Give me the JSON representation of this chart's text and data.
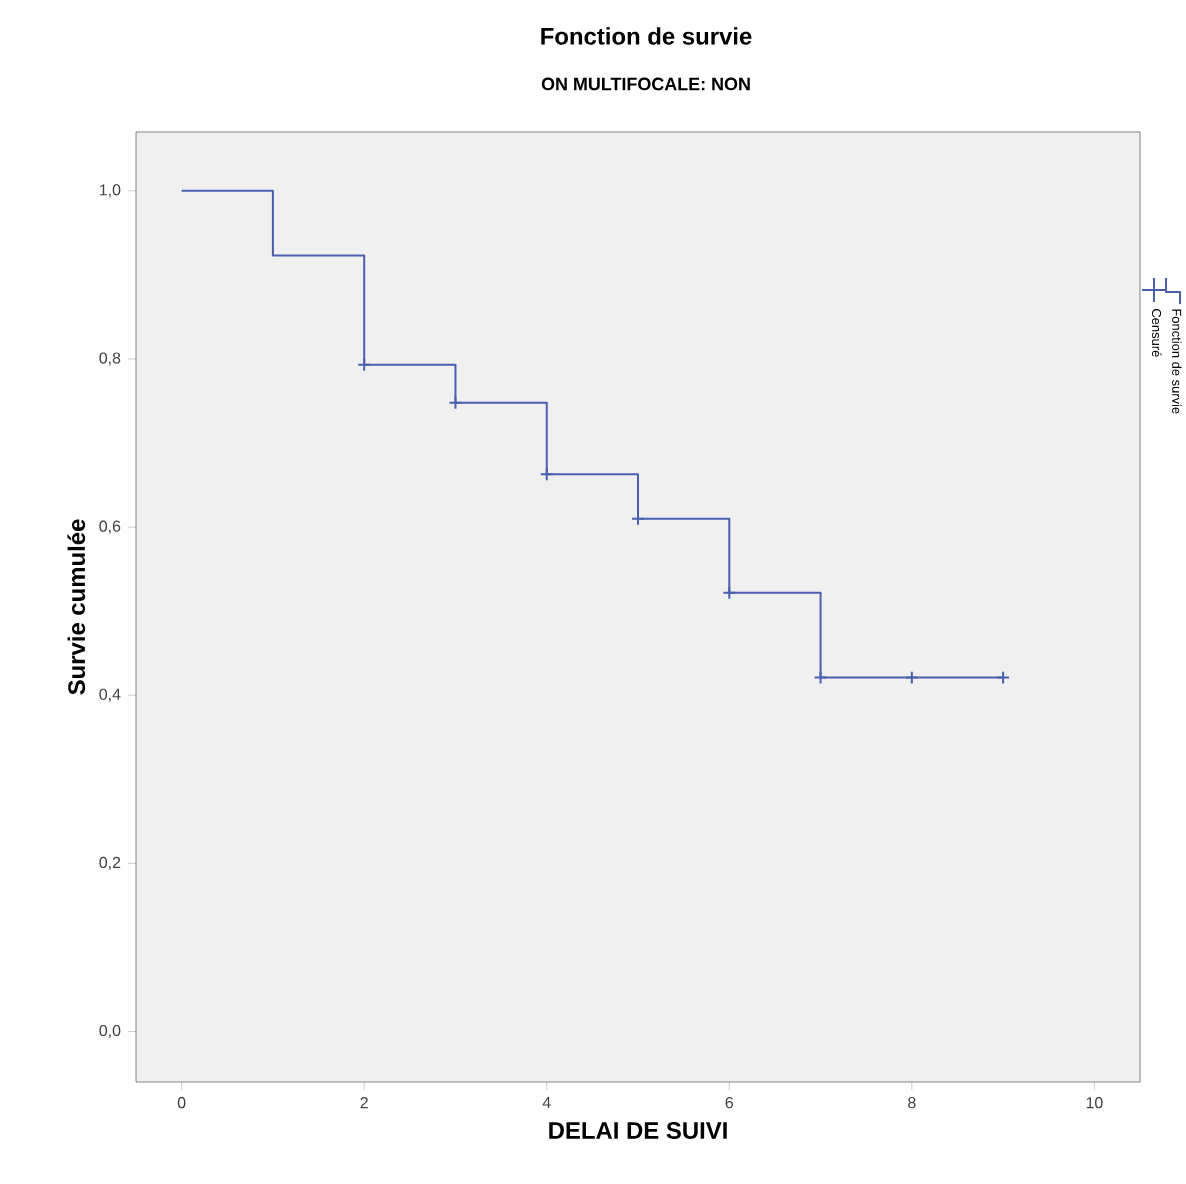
{
  "chart_data": {
    "type": "step",
    "title": "Fonction de survie",
    "subtitle": "ON MULTIFOCALE: NON",
    "xlabel": "DELAI DE SUIVI",
    "ylabel": "Survie cumulée",
    "xlim": [
      -0.5,
      10.5
    ],
    "xticks": [
      0,
      2,
      4,
      6,
      8,
      10
    ],
    "ylim": [
      -0.06,
      1.07
    ],
    "yticks": [
      {
        "value": 0,
        "label": "0,0"
      },
      {
        "value": 0.2,
        "label": "0,2"
      },
      {
        "value": 0.4,
        "label": "0,4"
      },
      {
        "value": 0.6,
        "label": "0,6"
      },
      {
        "value": 0.8,
        "label": "0,8"
      },
      {
        "value": 1,
        "label": "1,0"
      }
    ],
    "legend": "right",
    "grid": false,
    "series": [
      {
        "name": "Fonction de survie",
        "color": "#4a5fb0",
        "x": [
          0,
          1,
          2,
          3,
          4,
          5,
          6,
          7,
          9
        ],
        "values": [
          1,
          0.923,
          0.793,
          0.748,
          0.663,
          0.61,
          0.522,
          0.421,
          0.421
        ]
      },
      {
        "name": "Censuré",
        "type": "scatter",
        "marker": "cross",
        "color": "#4a5fb0",
        "x": [
          2,
          3,
          4,
          5,
          6,
          7,
          8,
          9
        ],
        "values": [
          0.793,
          0.748,
          0.663,
          0.61,
          0.522,
          0.421,
          0.421,
          0.421
        ]
      }
    ]
  }
}
